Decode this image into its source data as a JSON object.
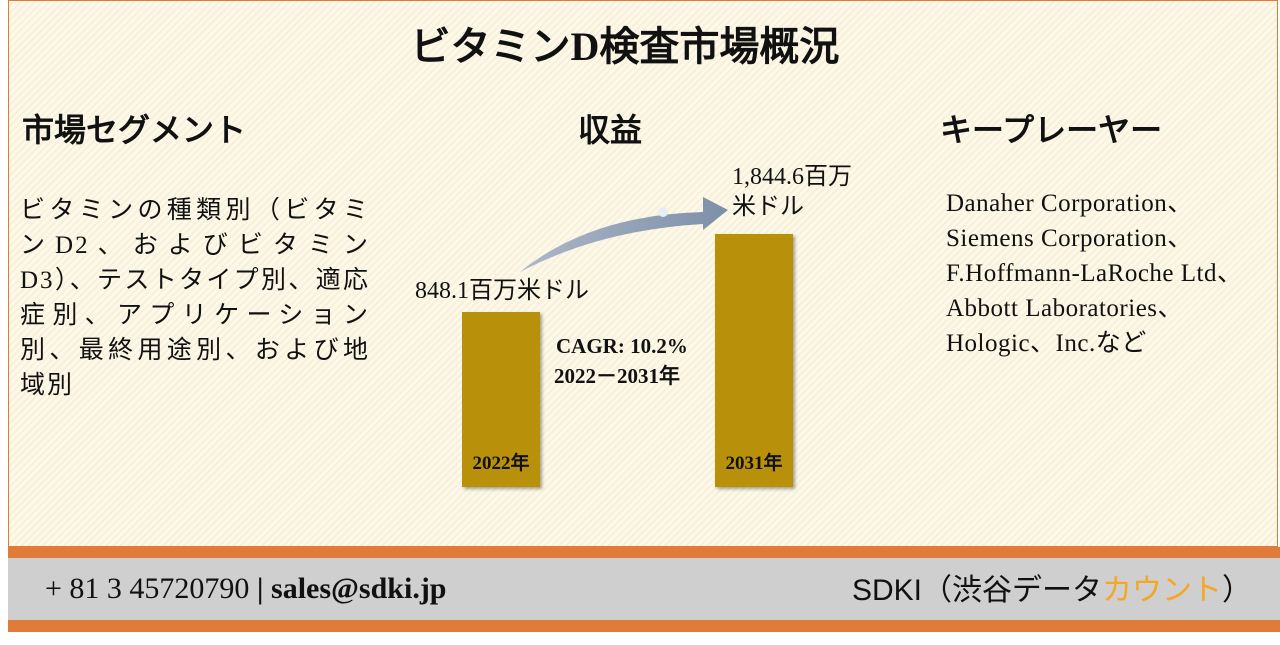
{
  "title": "ビタミンD検査市場概況",
  "segments": {
    "heading": "市場セグメント",
    "text": "ビタミンの種類別（ビタミンD2、およびビタミンD3）、テストタイプ別、適応症別、アプリケーション別、最終用途別、および地域別"
  },
  "revenue": {
    "heading": "収益",
    "start_value": "848.1百万米ドル",
    "end_value": "1,844.6百万米ドル",
    "start_year": "2022年",
    "end_year": "2031年",
    "cagr": "CAGR: 10.2%",
    "period": "2022－2031年"
  },
  "players": {
    "heading": "キープレーヤー",
    "text": "Danaher Corporation、Siemens Corporation、F.Hoffmann-LaRoche Ltd、Abbott Laboratories、Hologic、Inc.など"
  },
  "footer": {
    "phone": "+ 81 3 45720790",
    "separator": "|",
    "email": "sales@sdki.jp",
    "company": "SDKI（渋谷データ",
    "company_highlight": "カウント",
    "company_end": "）"
  }
}
